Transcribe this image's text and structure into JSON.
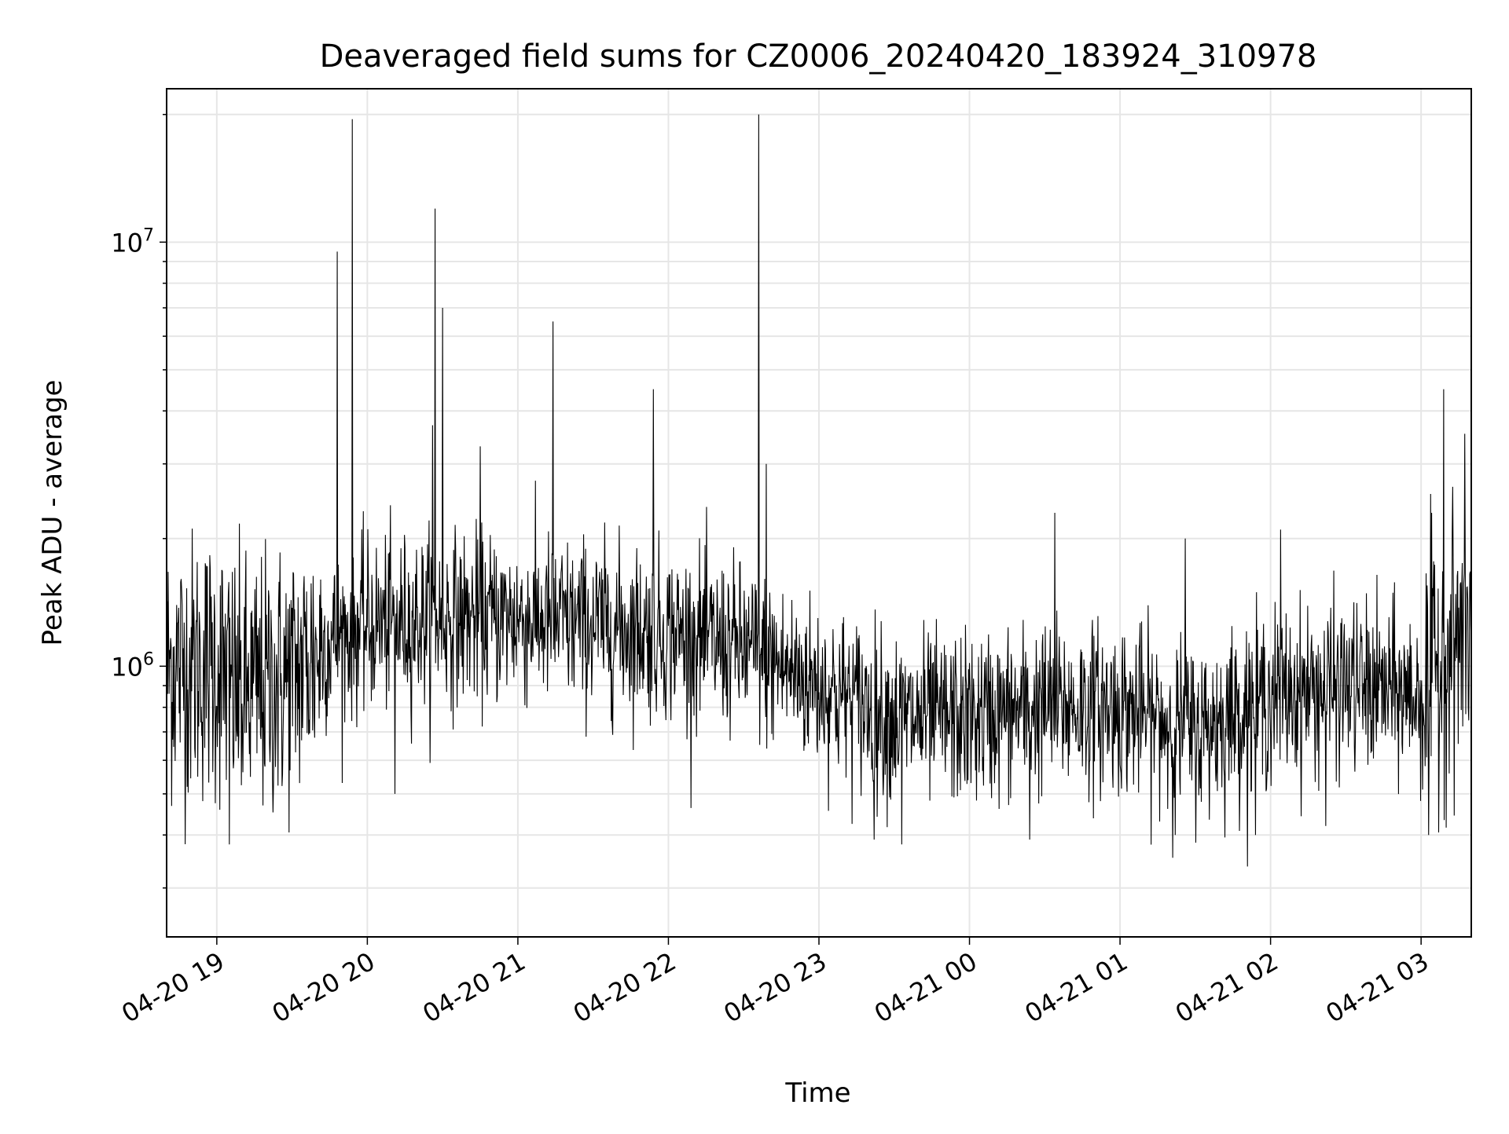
{
  "chart_data": {
    "type": "line",
    "title": "Deaveraged field sums for CZ0006_20240420_183924_310978",
    "xlabel": "Time",
    "ylabel": "Peak ADU - average",
    "x_start": "2024-04-20T18:40",
    "x_end": "2024-04-21T03:20",
    "xlim": [
      "2024-04-20T18:40",
      "2024-04-21T03:20"
    ],
    "yscale": "log",
    "ylim": [
      230000,
      23000000
    ],
    "grid": true,
    "legend": false,
    "colors": {
      "line": "#000000",
      "grid": "#e6e6e6",
      "axes": "#000000",
      "background": "#ffffff"
    },
    "x_ticks": [
      {
        "label": "04-20 19",
        "hour": 19
      },
      {
        "label": "04-20 20",
        "hour": 20
      },
      {
        "label": "04-20 21",
        "hour": 21
      },
      {
        "label": "04-20 22",
        "hour": 22
      },
      {
        "label": "04-20 23",
        "hour": 23
      },
      {
        "label": "04-21 00",
        "hour": 24
      },
      {
        "label": "04-21 01",
        "hour": 25
      },
      {
        "label": "04-21 02",
        "hour": 26
      },
      {
        "label": "04-21 03",
        "hour": 27
      }
    ],
    "y_ticks": [
      {
        "base": "10",
        "exp": "6",
        "value": 1000000
      },
      {
        "base": "10",
        "exp": "7",
        "value": 10000000
      }
    ],
    "baseline": [
      [
        "2024-04-20T18:40",
        1000000
      ],
      [
        "2024-04-20T19:00",
        1000000
      ],
      [
        "2024-04-20T19:10",
        850000
      ],
      [
        "2024-04-20T19:30",
        950000
      ],
      [
        "2024-04-20T19:45",
        1150000
      ],
      [
        "2024-04-20T20:00",
        1250000
      ],
      [
        "2024-04-20T20:30",
        1300000
      ],
      [
        "2024-04-20T21:00",
        1300000
      ],
      [
        "2024-04-20T21:30",
        1250000
      ],
      [
        "2024-04-20T22:00",
        1200000
      ],
      [
        "2024-04-20T22:30",
        1100000
      ],
      [
        "2024-04-20T23:00",
        900000
      ],
      [
        "2024-04-20T23:30",
        750000
      ],
      [
        "2024-04-21T00:00",
        750000
      ],
      [
        "2024-04-21T00:30",
        800000
      ],
      [
        "2024-04-21T01:00",
        800000
      ],
      [
        "2024-04-21T01:30",
        700000
      ],
      [
        "2024-04-21T02:00",
        850000
      ],
      [
        "2024-04-21T02:30",
        900000
      ],
      [
        "2024-04-21T03:00",
        850000
      ],
      [
        "2024-04-21T03:10",
        1100000
      ],
      [
        "2024-04-21T03:20",
        1250000
      ]
    ],
    "spikes": [
      [
        "2024-04-20T19:48",
        9500000
      ],
      [
        "2024-04-20T19:54",
        19500000
      ],
      [
        "2024-04-20T20:27",
        12000000
      ],
      [
        "2024-04-20T20:30",
        7000000
      ],
      [
        "2024-04-20T20:26",
        3700000
      ],
      [
        "2024-04-20T21:14",
        6500000
      ],
      [
        "2024-04-20T21:54",
        4500000
      ],
      [
        "2024-04-20T22:36",
        20000000
      ],
      [
        "2024-04-20T22:39",
        3000000
      ],
      [
        "2024-04-20T20:45",
        3300000
      ],
      [
        "2024-04-21T03:09",
        4500000
      ],
      [
        "2024-04-21T00:34",
        2300000
      ],
      [
        "2024-04-21T02:04",
        2100000
      ],
      [
        "2024-04-21T01:26",
        2000000
      ],
      [
        "2024-04-20T20:11",
        500000
      ],
      [
        "2024-04-20T19:05",
        380000
      ],
      [
        "2024-04-20T23:22",
        390000
      ],
      [
        "2024-04-20T23:33",
        380000
      ],
      [
        "2024-04-21T00:24",
        390000
      ],
      [
        "2024-04-21T01:22",
        400000
      ],
      [
        "2024-04-21T01:54",
        400000
      ],
      [
        "2024-04-21T02:22",
        420000
      ],
      [
        "2024-04-21T03:03",
        400000
      ]
    ]
  }
}
